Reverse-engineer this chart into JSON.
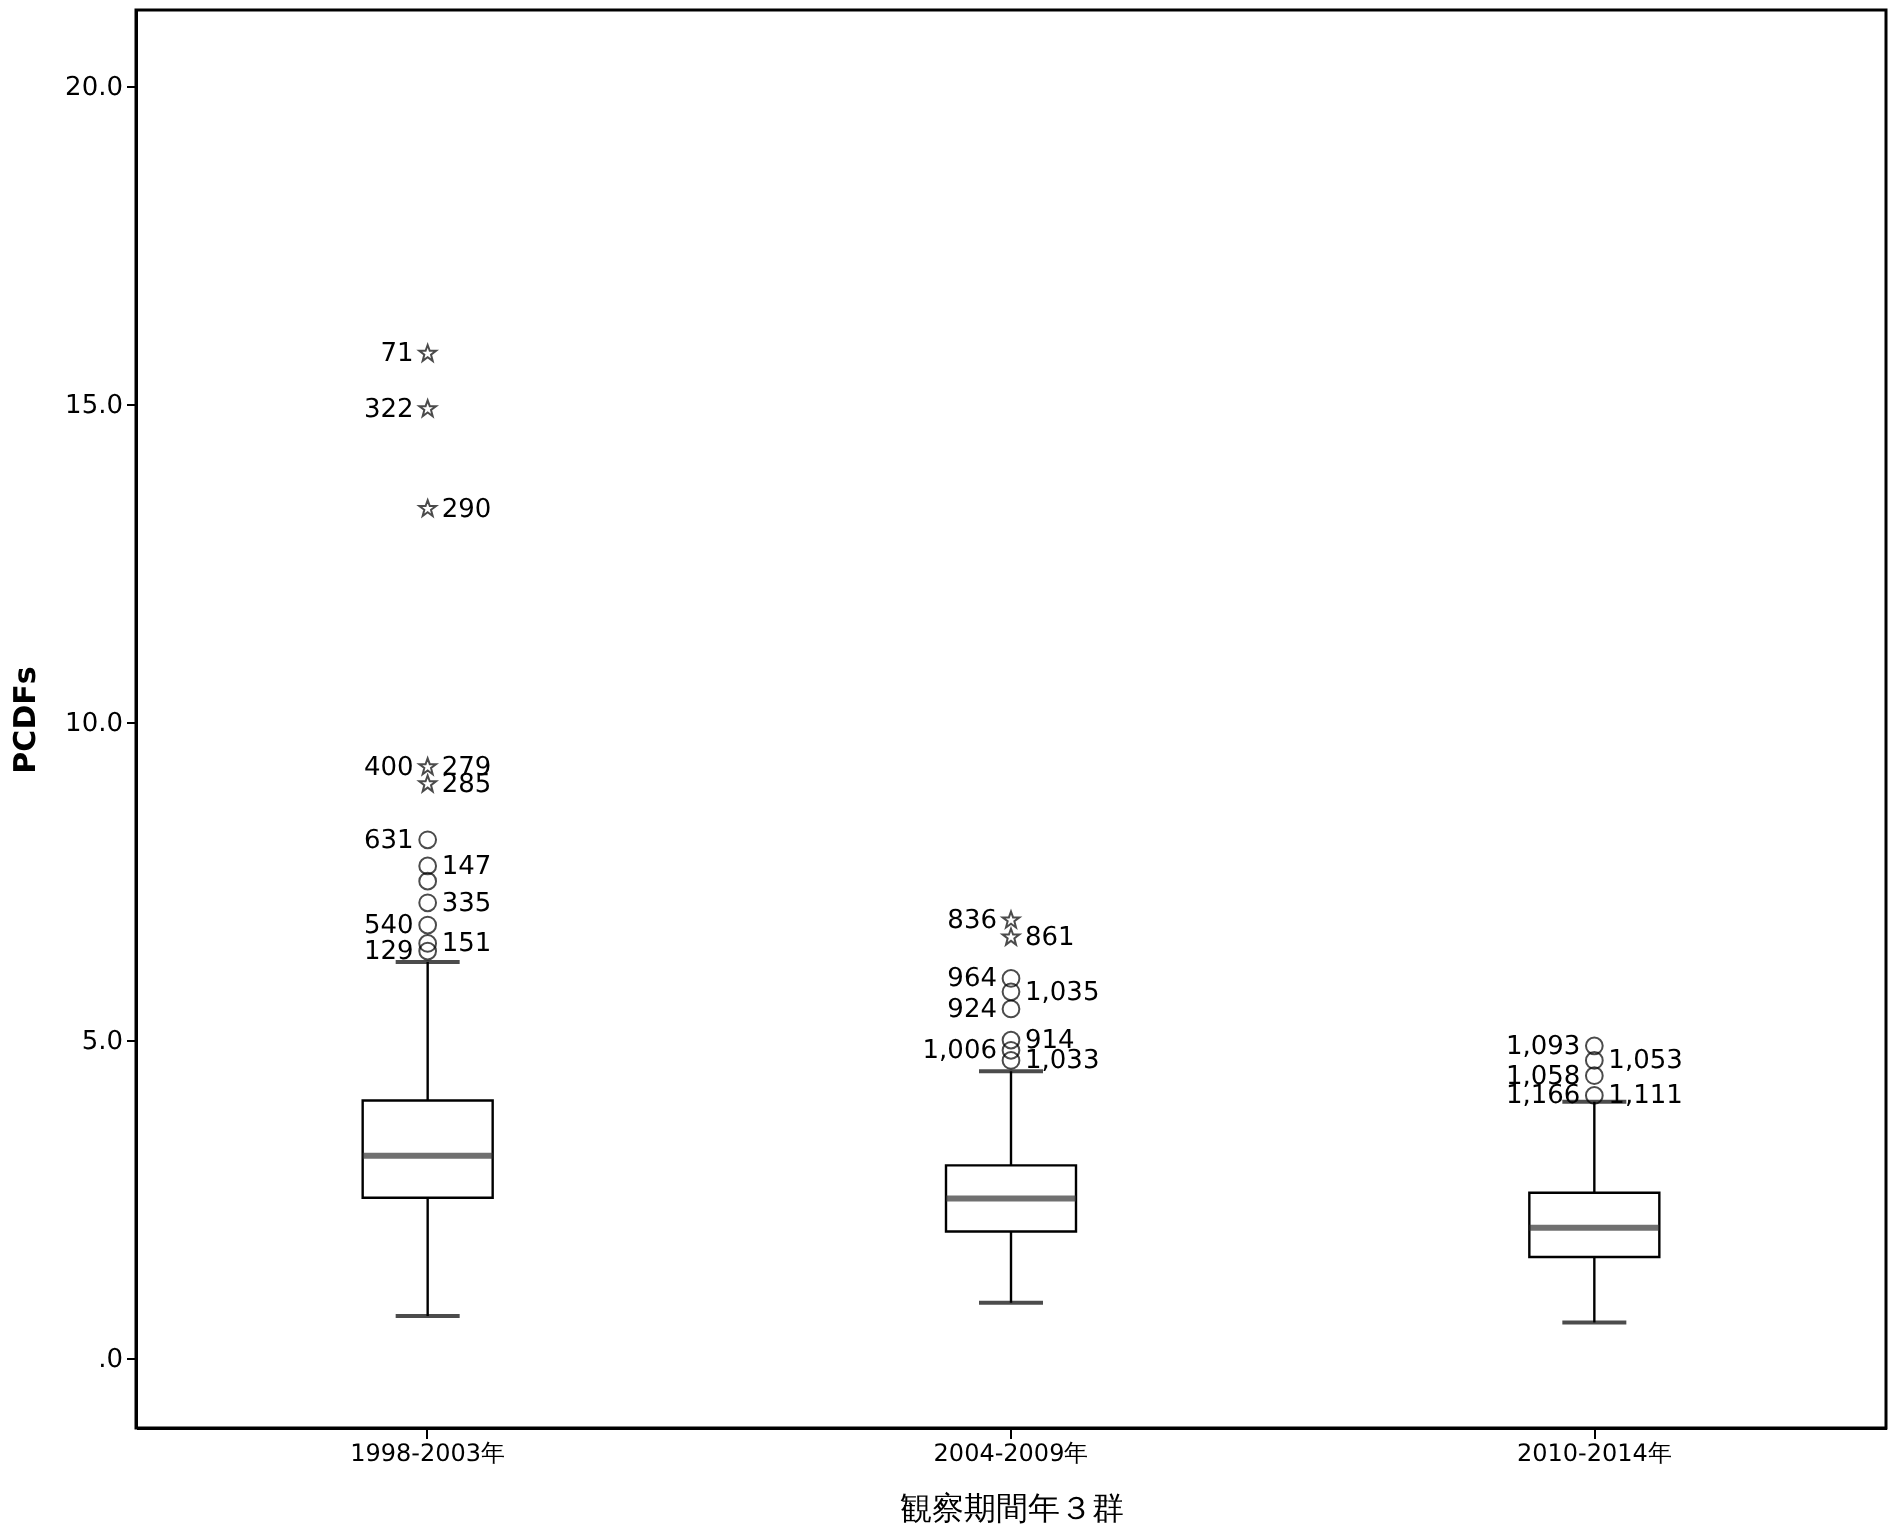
{
  "chart_data": {
    "type": "box",
    "xlabel": "観察期間年３群",
    "ylabel": "PCDFs",
    "categories": [
      "1998-2003年",
      "2004-2009年",
      "2010-2014年"
    ],
    "boxes": [
      {
        "low": 0.66,
        "q1": 2.52,
        "median": 3.18,
        "q3": 4.05,
        "high": 6.23
      },
      {
        "low": 0.87,
        "q1": 1.99,
        "median": 2.51,
        "q3": 3.03,
        "high": 4.51
      },
      {
        "low": 0.56,
        "q1": 1.59,
        "median": 2.05,
        "q3": 2.6,
        "high": 4.03
      }
    ],
    "series": [
      {
        "type": "scatter",
        "marker": "circle",
        "color": "#000000",
        "x": [
          "1998-2003年",
          "1998-2003年",
          "1998-2003年",
          "1998-2003年",
          "1998-2003年",
          "1998-2003年",
          "1998-2003年",
          "2004-2009年",
          "2004-2009年",
          "2004-2009年",
          "2004-2009年",
          "2004-2009年",
          "2004-2009年",
          "2010-2014年",
          "2010-2014年",
          "2010-2014年",
          "2010-2014年"
        ],
        "values": [
          6.4,
          6.52,
          6.81,
          7.16,
          7.5,
          7.74,
          8.15,
          4.68,
          4.84,
          5.0,
          5.49,
          5.76,
          5.97,
          4.13,
          4.44,
          4.68,
          4.91
        ]
      },
      {
        "type": "scatter",
        "marker": "star",
        "color": "#000000",
        "x": [
          "1998-2003年",
          "1998-2003年",
          "1998-2003年",
          "1998-2003年",
          "1998-2003年",
          "2004-2009年",
          "2004-2009年"
        ],
        "values": [
          9.03,
          9.3,
          13.36,
          14.93,
          15.8,
          6.62,
          6.89
        ]
      }
    ],
    "ylim": [
      -1.1,
      21.2
    ],
    "yticks": [
      {
        "value": 0,
        "label": ".0"
      },
      {
        "value": 5,
        "label": "5.0"
      },
      {
        "value": 10,
        "label": "10.0"
      },
      {
        "value": 15,
        "label": "15.0"
      },
      {
        "value": 20,
        "label": "20.0"
      }
    ],
    "grid": false,
    "legend": false,
    "annotations": [
      {
        "text": "71",
        "x": "1998-2003年",
        "y": 15.8
      },
      {
        "text": "279",
        "x": "1998-2003年",
        "y": 9.3
      },
      {
        "text": "400",
        "x": "1998-2003年",
        "y": 9.3
      },
      {
        "text": "285",
        "x": "1998-2003年",
        "y": 9.03
      },
      {
        "text": "631",
        "x": "1998-2003年",
        "y": 8.15
      },
      {
        "text": "147",
        "x": "1998-2003年",
        "y": 7.74
      },
      {
        "text": "540",
        "x": "1998-2003年",
        "y": 6.81
      },
      {
        "text": "335",
        "x": "1998-2003年",
        "y": 7.16
      },
      {
        "text": "129",
        "x": "1998-2003年",
        "y": 6.4
      },
      {
        "text": "151",
        "x": "1998-2003年",
        "y": 6.52
      },
      {
        "text": "322",
        "x": "1998-2003年",
        "y": 14.93
      },
      {
        "text": "290",
        "x": "1998-2003年",
        "y": 13.36
      },
      {
        "text": "836",
        "x": "2004-2009年",
        "y": 6.89
      },
      {
        "text": "861",
        "x": "2004-2009年",
        "y": 6.62
      },
      {
        "text": "964",
        "x": "2004-2009年",
        "y": 5.97
      },
      {
        "text": "1,035",
        "x": "2004-2009年",
        "y": 5.76
      },
      {
        "text": "924",
        "x": "2004-2009年",
        "y": 5.49
      },
      {
        "text": "914",
        "x": "2004-2009年",
        "y": 5.0
      },
      {
        "text": "1,006",
        "x": "2004-2009年",
        "y": 4.84
      },
      {
        "text": "1,033",
        "x": "2004-2009年",
        "y": 4.68
      },
      {
        "text": "1,093",
        "x": "2010-2014年",
        "y": 4.91
      },
      {
        "text": "1,053",
        "x": "2010-2014年",
        "y": 4.68
      },
      {
        "text": "1,058",
        "x": "2010-2014年",
        "y": 4.44
      },
      {
        "text": "1,111",
        "x": "2010-2014年",
        "y": 4.13
      },
      {
        "text": "1,166",
        "x": "2010-2014年",
        "y": 4.13
      }
    ]
  }
}
